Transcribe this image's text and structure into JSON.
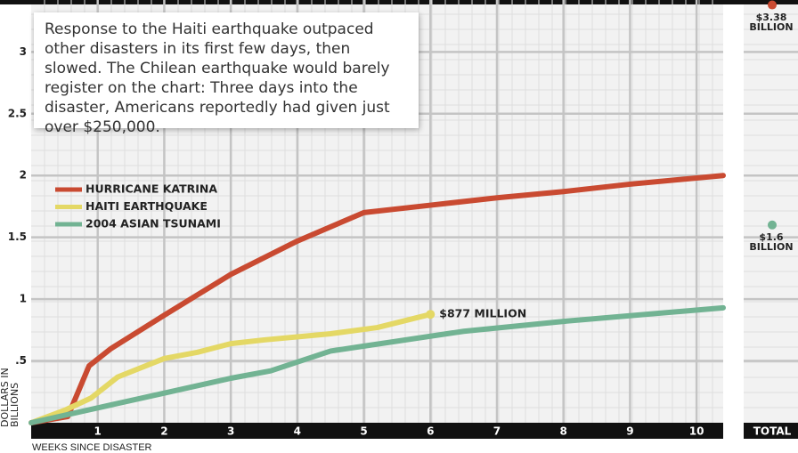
{
  "chart_data": {
    "type": "line",
    "annotation": "Response to the Haiti earthquake outpaced other disasters in its first few days, then slowed. The Chilean earthquake would barely register on the chart: Three days into the disaster, Americans reportedly had given just over $250,000.",
    "x_label": "WEEKS SINCE DISASTER",
    "y_label": "DOLLARS IN BILLIONS",
    "xlim": [
      0,
      10.4
    ],
    "ylim": [
      0,
      3.42
    ],
    "xticks": [
      1,
      2,
      3,
      4,
      5,
      6,
      7,
      8,
      9,
      10
    ],
    "yticks": [
      {
        "value": 0.5,
        "label": ".5"
      },
      1,
      1.5,
      2,
      2.5,
      3
    ],
    "grid": true,
    "series": [
      {
        "name": "HURRICANE KATRINA",
        "color": "#c94a31",
        "x": [
          0,
          0.55,
          0.87,
          1.2,
          2,
          3,
          4,
          5,
          6,
          7,
          8,
          9,
          10.4
        ],
        "values": [
          0,
          0.05,
          0.46,
          0.6,
          0.87,
          1.2,
          1.47,
          1.7,
          1.76,
          1.82,
          1.87,
          1.93,
          2.0
        ]
      },
      {
        "name": "HAITI EARTHQUAKE",
        "color": "#e4d865",
        "x": [
          0,
          0.5,
          0.9,
          1.3,
          2,
          2.5,
          3,
          3.5,
          4.5,
          5.2,
          6
        ],
        "values": [
          0,
          0.1,
          0.2,
          0.37,
          0.52,
          0.57,
          0.64,
          0.67,
          0.72,
          0.77,
          0.877
        ],
        "end_label": "$877 MILLION"
      },
      {
        "name": "2004 ASIAN TSUNAMI",
        "color": "#72b393",
        "x": [
          0,
          1,
          2,
          3,
          3.6,
          4.5,
          5,
          6.5,
          8,
          10.4
        ],
        "values": [
          0,
          0.12,
          0.24,
          0.36,
          0.42,
          0.58,
          0.62,
          0.74,
          0.82,
          0.93
        ]
      }
    ],
    "totals": {
      "label": "TOTAL",
      "points": [
        {
          "color": "#c94a31",
          "value": 3.38,
          "label": "$3.38 BILLION"
        },
        {
          "color": "#72b393",
          "value": 1.6,
          "label": "$1.6 BILLION"
        }
      ]
    }
  }
}
